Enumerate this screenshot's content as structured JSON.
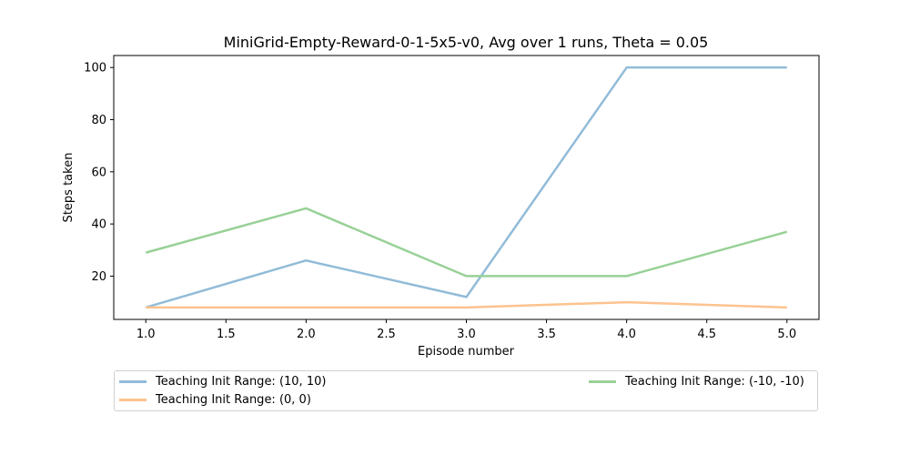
{
  "chart_data": {
    "type": "line",
    "title": "MiniGrid-Empty-Reward-0-1-5x5-v0, Avg over 1 runs, Theta = 0.05",
    "xlabel": "Episode number",
    "ylabel": "Steps taken",
    "xlim": [
      0.8,
      5.2
    ],
    "ylim": [
      3.4,
      104.6
    ],
    "xticks": [
      1.0,
      1.5,
      2.0,
      2.5,
      3.0,
      3.5,
      4.0,
      4.5,
      5.0
    ],
    "xtick_labels": [
      "1.0",
      "1.5",
      "2.0",
      "2.5",
      "3.0",
      "3.5",
      "4.0",
      "4.5",
      "5.0"
    ],
    "yticks": [
      20,
      40,
      60,
      80,
      100
    ],
    "ytick_labels": [
      "20",
      "40",
      "60",
      "80",
      "100"
    ],
    "grid": false,
    "x": [
      1,
      2,
      3,
      4,
      5
    ],
    "series": [
      {
        "name": "Teaching Init Range: (10, 10)",
        "values": [
          8,
          26,
          12,
          100,
          100
        ],
        "color": "#92bcd8"
      },
      {
        "name": "Teaching Init Range: (0, 0)",
        "values": [
          8,
          8,
          8,
          10,
          8
        ],
        "color": "#fdc38f"
      },
      {
        "name": "Teaching Init Range: (-10, -10)",
        "values": [
          29,
          46,
          20,
          20,
          37
        ],
        "color": "#98d197"
      }
    ],
    "legend_placement": "below"
  }
}
